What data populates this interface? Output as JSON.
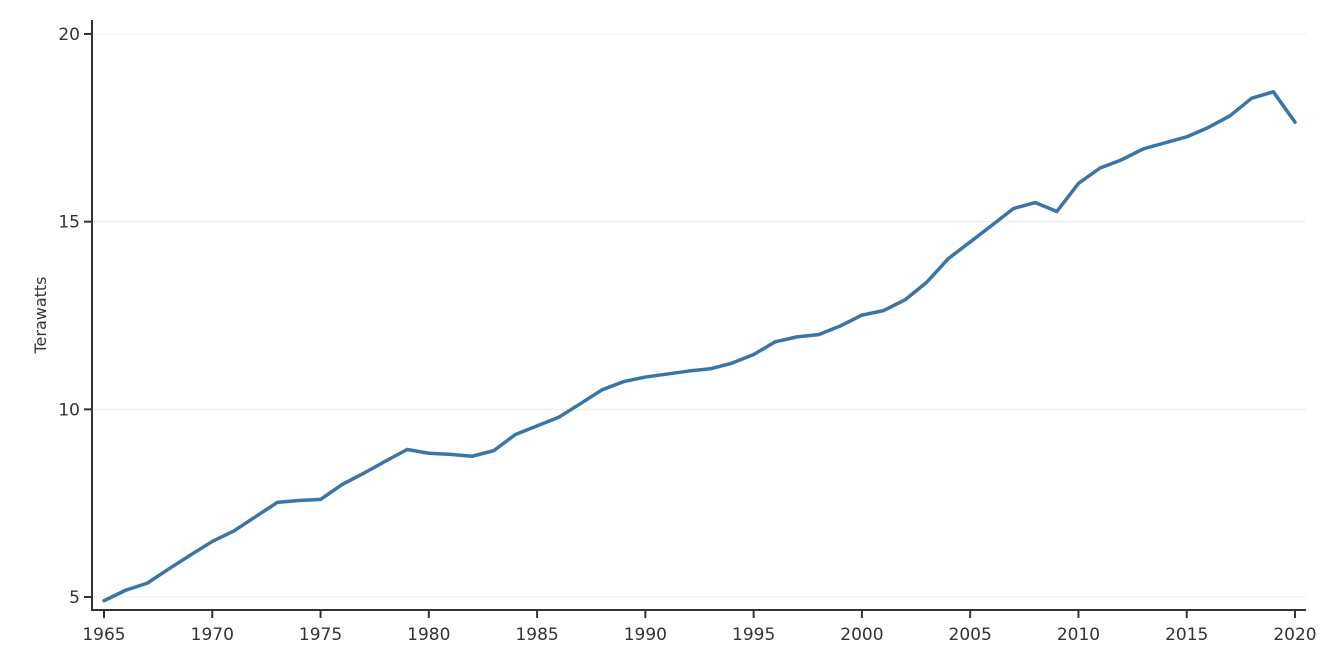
{
  "chart_data": {
    "type": "line",
    "title": "",
    "xlabel": "",
    "ylabel": "Terawatts",
    "xlim": [
      1965,
      2020
    ],
    "ylim": [
      5,
      20
    ],
    "grid": "horizontal",
    "legend": "none",
    "x_ticks": [
      "1965",
      "1970",
      "1975",
      "1980",
      "1985",
      "1990",
      "1995",
      "2000",
      "2005",
      "2010",
      "2015",
      "2020"
    ],
    "y_ticks": [
      "5",
      "10",
      "15",
      "20"
    ],
    "x": [
      1965,
      1966,
      1967,
      1968,
      1969,
      1970,
      1971,
      1972,
      1973,
      1974,
      1975,
      1976,
      1977,
      1978,
      1979,
      1980,
      1981,
      1982,
      1983,
      1984,
      1985,
      1986,
      1987,
      1988,
      1989,
      1990,
      1991,
      1992,
      1993,
      1994,
      1995,
      1996,
      1997,
      1998,
      1999,
      2000,
      2001,
      2002,
      2003,
      2004,
      2005,
      2006,
      2007,
      2008,
      2009,
      2010,
      2011,
      2012,
      2013,
      2014,
      2015,
      2016,
      2017,
      2018,
      2019,
      2020
    ],
    "series": [
      {
        "color": "#3a75a8",
        "values": [
          4.9,
          5.18,
          5.37,
          5.75,
          6.12,
          6.48,
          6.76,
          7.14,
          7.52,
          7.57,
          7.6,
          8.0,
          8.3,
          8.62,
          8.93,
          8.83,
          8.8,
          8.75,
          8.9,
          9.33,
          9.56,
          9.79,
          10.15,
          10.52,
          10.74,
          10.86,
          10.94,
          11.02,
          11.08,
          11.23,
          11.46,
          11.8,
          11.93,
          11.99,
          12.22,
          12.51,
          12.63,
          12.92,
          13.39,
          14.02,
          14.46,
          14.9,
          15.35,
          15.51,
          15.27,
          16.02,
          16.43,
          16.65,
          16.94,
          17.1,
          17.26,
          17.51,
          17.82,
          18.29,
          18.46,
          17.65
        ]
      }
    ]
  }
}
